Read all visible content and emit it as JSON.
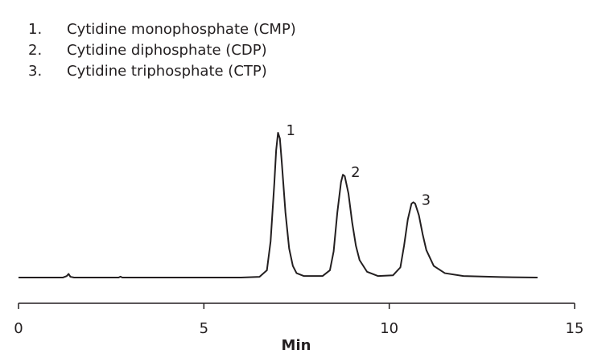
{
  "chart_data": {
    "type": "line",
    "legend_items": [
      {
        "number": "1.",
        "text": "Cytidine monophosphate (CMP)"
      },
      {
        "number": "2.",
        "text": "Cytidine diphosphate (CDP)"
      },
      {
        "number": "3.",
        "text": "Cytidine triphosphate (CTP)"
      }
    ],
    "xlabel": "Min",
    "xlim": [
      0,
      15
    ],
    "xticks": [
      0,
      5,
      10,
      15
    ],
    "ylim": [
      -17.8,
      100
    ],
    "color": "#231f20",
    "x": [
      0,
      1.2,
      1.3,
      1.35,
      1.4,
      1.5,
      2.7,
      2.75,
      2.8,
      6.0,
      6.5,
      6.7,
      6.8,
      6.9,
      6.95,
      7.0,
      7.05,
      7.1,
      7.2,
      7.3,
      7.4,
      7.5,
      7.7,
      8.2,
      8.4,
      8.5,
      8.6,
      8.7,
      8.75,
      8.8,
      8.9,
      9.0,
      9.1,
      9.2,
      9.4,
      9.7,
      10.1,
      10.3,
      10.4,
      10.5,
      10.6,
      10.65,
      10.7,
      10.8,
      10.9,
      11.0,
      11.2,
      11.5,
      12,
      13,
      14
    ],
    "values": [
      0,
      0,
      1,
      2.5,
      0.5,
      0,
      0,
      0.6,
      0,
      0,
      0.5,
      5,
      25,
      65,
      88,
      100,
      96,
      80,
      45,
      20,
      8,
      3,
      1,
      1,
      5,
      18,
      45,
      66,
      71,
      70,
      58,
      38,
      22,
      12,
      4,
      1,
      1.5,
      7,
      22,
      40,
      51,
      52,
      51,
      43,
      30,
      19,
      8,
      3,
      1,
      0.3,
      0
    ],
    "annotations": [
      {
        "text": "1",
        "x": 7.0,
        "y": 100
      },
      {
        "text": "2",
        "x": 8.75,
        "y": 71
      },
      {
        "text": "3",
        "x": 10.65,
        "y": 52
      }
    ]
  }
}
